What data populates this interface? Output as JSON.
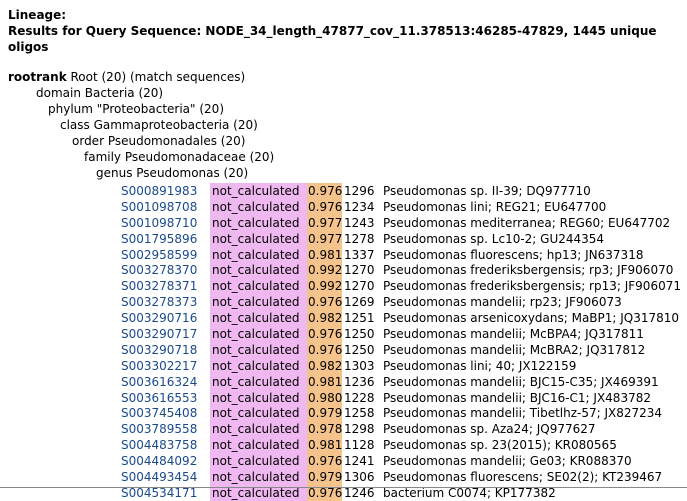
{
  "header": {
    "lineage_label": "Lineage:",
    "results_line": "Results for Query Sequence: NODE_34_length_47877_cov_11.378513:46285-47829, 1445 unique oligos"
  },
  "tree": {
    "root_rank": "rootrank",
    "root_rest": " Root (20) (match sequences)",
    "lines": [
      "domain Bacteria (20)",
      "phylum \"Proteobacteria\" (20)",
      "class Gammaproteobacteria (20)",
      "order Pseudomonadales (20)",
      "family Pseudomonadaceae (20)",
      "genus Pseudomonas (20)"
    ]
  },
  "sequences": [
    {
      "id": "S000891983",
      "status": "not_calculated",
      "score": "0.976",
      "len": "1296",
      "name": "Pseudomonas sp. II-39; DQ977710"
    },
    {
      "id": "S001098708",
      "status": "not_calculated",
      "score": "0.976",
      "len": "1234",
      "name": "Pseudomonas lini; REG21; EU647700"
    },
    {
      "id": "S001098710",
      "status": "not_calculated",
      "score": "0.977",
      "len": "1243",
      "name": "Pseudomonas mediterranea; REG60; EU647702"
    },
    {
      "id": "S001795896",
      "status": "not_calculated",
      "score": "0.977",
      "len": "1278",
      "name": "Pseudomonas sp. Lc10-2; GU244354"
    },
    {
      "id": "S002958599",
      "status": "not_calculated",
      "score": "0.981",
      "len": "1337",
      "name": "Pseudomonas fluorescens; hp13; JN637318"
    },
    {
      "id": "S003278370",
      "status": "not_calculated",
      "score": "0.992",
      "len": "1270",
      "name": "Pseudomonas frederiksbergensis; rp3; JF906070"
    },
    {
      "id": "S003278371",
      "status": "not_calculated",
      "score": "0.992",
      "len": "1270",
      "name": "Pseudomonas frederiksbergensis; rp13; JF906071"
    },
    {
      "id": "S003278373",
      "status": "not_calculated",
      "score": "0.976",
      "len": "1269",
      "name": "Pseudomonas mandelii; rp23; JF906073"
    },
    {
      "id": "S003290716",
      "status": "not_calculated",
      "score": "0.982",
      "len": "1251",
      "name": "Pseudomonas arsenicoxydans; MaBP1; JQ317810"
    },
    {
      "id": "S003290717",
      "status": "not_calculated",
      "score": "0.976",
      "len": "1250",
      "name": "Pseudomonas mandelii; McBPA4; JQ317811"
    },
    {
      "id": "S003290718",
      "status": "not_calculated",
      "score": "0.976",
      "len": "1250",
      "name": "Pseudomonas mandelii; McBRA2; JQ317812"
    },
    {
      "id": "S003302217",
      "status": "not_calculated",
      "score": "0.982",
      "len": "1303",
      "name": "Pseudomonas lini; 40; JX122159"
    },
    {
      "id": "S003616324",
      "status": "not_calculated",
      "score": "0.981",
      "len": "1236",
      "name": "Pseudomonas mandelii; BJC15-C35; JX469391"
    },
    {
      "id": "S003616553",
      "status": "not_calculated",
      "score": "0.980",
      "len": "1228",
      "name": "Pseudomonas mandelii; BJC16-C1; JX483782"
    },
    {
      "id": "S003745408",
      "status": "not_calculated",
      "score": "0.979",
      "len": "1258",
      "name": "Pseudomonas mandelii; Tibetlhz-57; JX827234"
    },
    {
      "id": "S003789558",
      "status": "not_calculated",
      "score": "0.978",
      "len": "1298",
      "name": "Pseudomonas sp. Aza24; JQ977627"
    },
    {
      "id": "S004483758",
      "status": "not_calculated",
      "score": "0.981",
      "len": "1128",
      "name": "Pseudomonas sp. 23(2015); KR080565"
    },
    {
      "id": "S004484092",
      "status": "not_calculated",
      "score": "0.976",
      "len": "1241",
      "name": "Pseudomonas mandelii; Ge03; KR088370"
    },
    {
      "id": "S004493454",
      "status": "not_calculated",
      "score": "0.979",
      "len": "1306",
      "name": "Pseudomonas fluorescens; SE02(2); KT239467"
    },
    {
      "id": "S004534171",
      "status": "not_calculated",
      "score": "0.976",
      "len": "1246",
      "name": "bacterium C0074; KP177382"
    }
  ]
}
